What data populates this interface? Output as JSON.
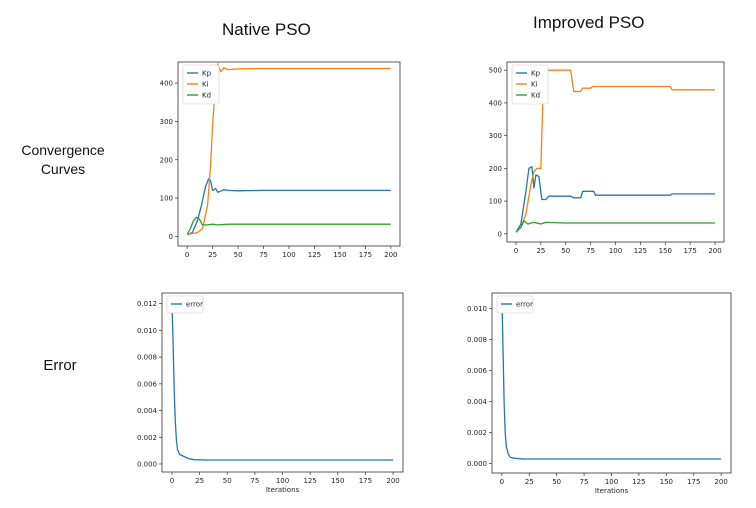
{
  "column_titles": {
    "native": "Native PSO",
    "improved": "Improved PSO"
  },
  "row_labels": {
    "convergence_line1": "Convergence",
    "convergence_line2": "Curves",
    "error": "Error"
  },
  "colors": {
    "Kp": "#1f77b4",
    "Ki": "#ff7f0e",
    "Kd": "#2ca02c",
    "error": "#1f77b4"
  },
  "chart_data": [
    {
      "id": "native-convergence",
      "type": "line",
      "title": "",
      "xlabel": "",
      "ylabel": "",
      "xlim": [
        -9,
        209
      ],
      "ylim": [
        -25,
        455
      ],
      "xticks": [
        0,
        25,
        50,
        75,
        100,
        125,
        150,
        175,
        200
      ],
      "yticks": [
        0,
        100,
        200,
        300,
        400
      ],
      "legend": "top-left",
      "grid": false,
      "series": [
        {
          "name": "Kp",
          "color": "#1f77b4",
          "points": [
            [
              0,
              5
            ],
            [
              5,
              10
            ],
            [
              10,
              40
            ],
            [
              14,
              80
            ],
            [
              18,
              130
            ],
            [
              21,
              150
            ],
            [
              23,
              145
            ],
            [
              25,
              120
            ],
            [
              28,
              125
            ],
            [
              30,
              115
            ],
            [
              33,
              118
            ],
            [
              36,
              122
            ],
            [
              40,
              120
            ],
            [
              50,
              119
            ],
            [
              75,
              120
            ],
            [
              100,
              120
            ],
            [
              150,
              120
            ],
            [
              200,
              120
            ]
          ]
        },
        {
          "name": "Ki",
          "color": "#ff7f0e",
          "points": [
            [
              0,
              5
            ],
            [
              10,
              10
            ],
            [
              15,
              20
            ],
            [
              20,
              80
            ],
            [
              23,
              185
            ],
            [
              25,
              290
            ],
            [
              27,
              370
            ],
            [
              28,
              410
            ],
            [
              30,
              450
            ],
            [
              33,
              430
            ],
            [
              36,
              440
            ],
            [
              40,
              435
            ],
            [
              50,
              437
            ],
            [
              75,
              438
            ],
            [
              100,
              438
            ],
            [
              150,
              438
            ],
            [
              200,
              438
            ]
          ]
        },
        {
          "name": "Kd",
          "color": "#2ca02c",
          "points": [
            [
              0,
              5
            ],
            [
              3,
              20
            ],
            [
              6,
              40
            ],
            [
              9,
              50
            ],
            [
              12,
              45
            ],
            [
              15,
              30
            ],
            [
              20,
              30
            ],
            [
              25,
              32
            ],
            [
              30,
              30
            ],
            [
              40,
              32
            ],
            [
              60,
              32
            ],
            [
              100,
              32
            ],
            [
              150,
              32
            ],
            [
              200,
              32
            ]
          ]
        }
      ]
    },
    {
      "id": "improved-convergence",
      "type": "line",
      "title": "",
      "xlabel": "",
      "ylabel": "",
      "xlim": [
        -9,
        209
      ],
      "ylim": [
        -25,
        525
      ],
      "xticks": [
        0,
        25,
        50,
        75,
        100,
        125,
        150,
        175,
        200
      ],
      "yticks": [
        0,
        100,
        200,
        300,
        400,
        500
      ],
      "legend": "top-left",
      "grid": false,
      "series": [
        {
          "name": "Kp",
          "color": "#1f77b4",
          "points": [
            [
              0,
              5
            ],
            [
              5,
              30
            ],
            [
              10,
              130
            ],
            [
              13,
              200
            ],
            [
              16,
              205
            ],
            [
              18,
              140
            ],
            [
              20,
              180
            ],
            [
              23,
              175
            ],
            [
              26,
              105
            ],
            [
              30,
              105
            ],
            [
              33,
              115
            ],
            [
              55,
              115
            ],
            [
              58,
              110
            ],
            [
              65,
              110
            ],
            [
              67,
              130
            ],
            [
              78,
              130
            ],
            [
              80,
              118
            ],
            [
              100,
              118
            ],
            [
              155,
              118
            ],
            [
              157,
              122
            ],
            [
              200,
              122
            ]
          ]
        },
        {
          "name": "Ki",
          "color": "#ff7f0e",
          "points": [
            [
              0,
              5
            ],
            [
              5,
              20
            ],
            [
              10,
              60
            ],
            [
              15,
              150
            ],
            [
              18,
              190
            ],
            [
              21,
              200
            ],
            [
              25,
              200
            ],
            [
              28,
              500
            ],
            [
              55,
              500
            ],
            [
              58,
              435
            ],
            [
              65,
              435
            ],
            [
              67,
              445
            ],
            [
              75,
              445
            ],
            [
              77,
              450
            ],
            [
              155,
              450
            ],
            [
              157,
              440
            ],
            [
              200,
              440
            ]
          ]
        },
        {
          "name": "Kd",
          "color": "#2ca02c",
          "points": [
            [
              0,
              5
            ],
            [
              5,
              20
            ],
            [
              8,
              40
            ],
            [
              12,
              30
            ],
            [
              18,
              35
            ],
            [
              25,
              30
            ],
            [
              30,
              35
            ],
            [
              50,
              33
            ],
            [
              100,
              33
            ],
            [
              150,
              33
            ],
            [
              200,
              33
            ]
          ]
        }
      ]
    },
    {
      "id": "native-error",
      "type": "line",
      "title": "",
      "xlabel": "Iterations",
      "ylabel": "",
      "xlim": [
        -9,
        209
      ],
      "ylim": [
        -0.0006,
        0.0128
      ],
      "xticks": [
        0,
        25,
        50,
        75,
        100,
        125,
        150,
        175,
        200
      ],
      "yticks": [
        0.0,
        0.002,
        0.004,
        0.006,
        0.008,
        0.01,
        0.012
      ],
      "ytick_labels": [
        "0.000",
        "0.002",
        "0.004",
        "0.006",
        "0.008",
        "0.010",
        "0.012"
      ],
      "legend": "top-left",
      "grid": false,
      "series": [
        {
          "name": "error",
          "color": "#1f77b4",
          "points": [
            [
              0,
              0.0122
            ],
            [
              1,
              0.009
            ],
            [
              2,
              0.0055
            ],
            [
              3,
              0.0032
            ],
            [
              4,
              0.0018
            ],
            [
              5,
              0.0011
            ],
            [
              7,
              0.0007
            ],
            [
              10,
              0.0006
            ],
            [
              15,
              0.0004
            ],
            [
              20,
              0.00032
            ],
            [
              30,
              0.0003
            ],
            [
              50,
              0.0003
            ],
            [
              100,
              0.0003
            ],
            [
              150,
              0.0003
            ],
            [
              200,
              0.0003
            ]
          ]
        }
      ]
    },
    {
      "id": "improved-error",
      "type": "line",
      "title": "",
      "xlabel": "Iterations",
      "ylabel": "",
      "xlim": [
        -9,
        209
      ],
      "ylim": [
        -0.0006,
        0.011
      ],
      "xticks": [
        0,
        25,
        50,
        75,
        100,
        125,
        150,
        175,
        200
      ],
      "yticks": [
        0.0,
        0.002,
        0.004,
        0.006,
        0.008,
        0.01
      ],
      "ytick_labels": [
        "0.000",
        "0.002",
        "0.004",
        "0.006",
        "0.008",
        "0.010"
      ],
      "legend": "top-left",
      "grid": false,
      "series": [
        {
          "name": "error",
          "color": "#1f77b4",
          "points": [
            [
              0,
              0.0107
            ],
            [
              1,
              0.0075
            ],
            [
              2,
              0.004
            ],
            [
              3,
              0.002
            ],
            [
              4,
              0.0011
            ],
            [
              6,
              0.0006
            ],
            [
              8,
              0.0004
            ],
            [
              12,
              0.00035
            ],
            [
              20,
              0.0003
            ],
            [
              50,
              0.0003
            ],
            [
              100,
              0.0003
            ],
            [
              150,
              0.0003
            ],
            [
              200,
              0.0003
            ]
          ]
        }
      ]
    }
  ]
}
